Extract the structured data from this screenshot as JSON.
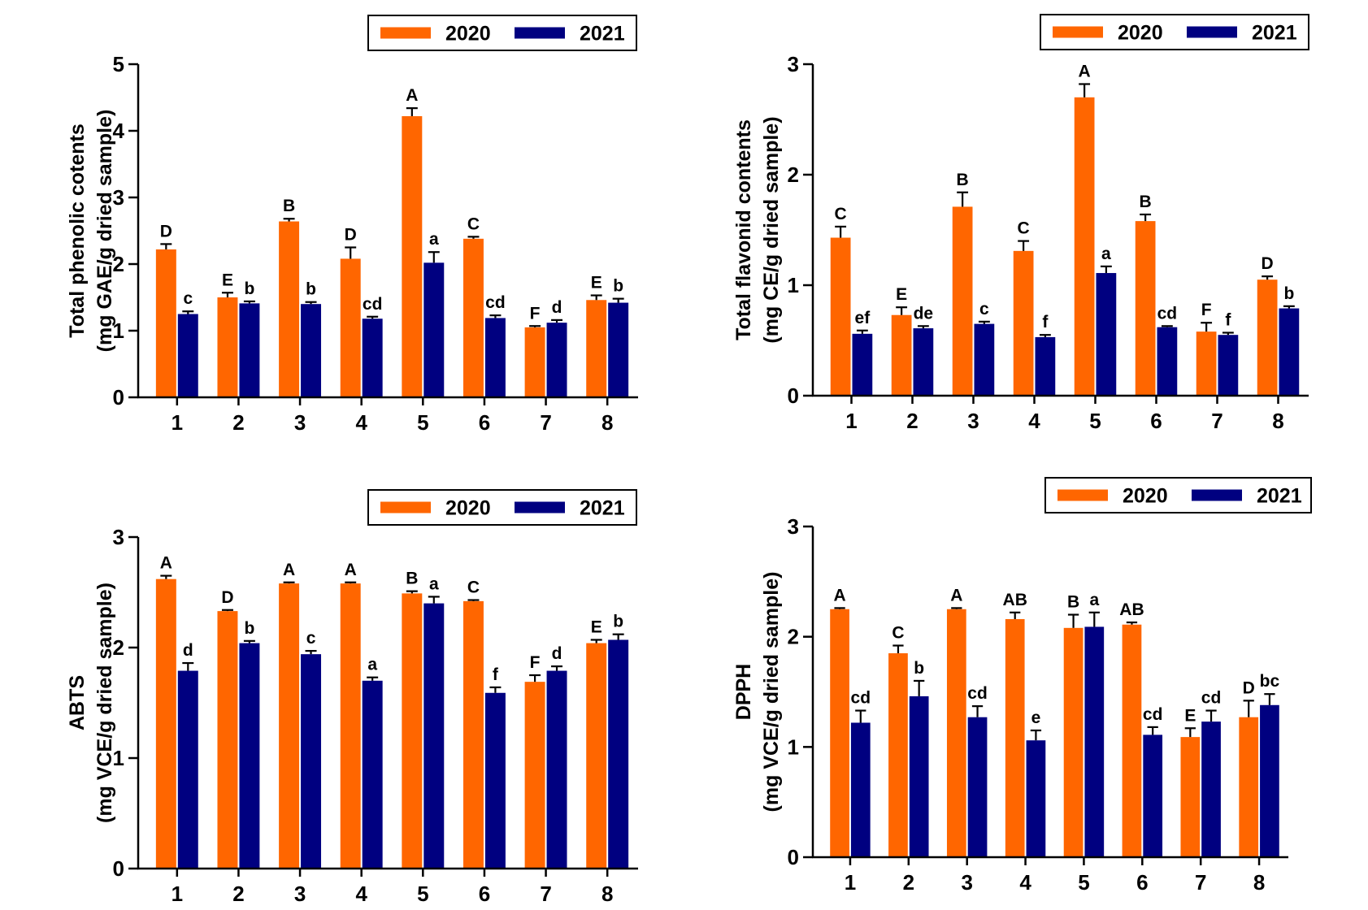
{
  "colors": {
    "series_2020": "#FF6600",
    "series_2021": "#000080",
    "axis": "#000000"
  },
  "chart_data": [
    {
      "type": "bar",
      "categories": [
        "1",
        "2",
        "3",
        "4",
        "5",
        "6",
        "7",
        "8"
      ],
      "ylabel_lines": [
        "Total phenolic cotents",
        "(mg GAE/g dried sample)"
      ],
      "ylim": [
        0,
        5
      ],
      "yticks": [
        0,
        1,
        2,
        3,
        4,
        5
      ],
      "legend": "top-right",
      "grid": false,
      "series": [
        {
          "name": "2020",
          "values": [
            2.22,
            1.5,
            2.64,
            2.08,
            4.22,
            2.38,
            1.05,
            1.46
          ],
          "errors": [
            0.08,
            0.07,
            0.04,
            0.17,
            0.12,
            0.03,
            0.02,
            0.07
          ],
          "labels": [
            "D",
            "E",
            "B",
            "D",
            "A",
            "C",
            "F",
            "E"
          ]
        },
        {
          "name": "2021",
          "values": [
            1.25,
            1.41,
            1.4,
            1.18,
            2.02,
            1.19,
            1.12,
            1.42
          ],
          "errors": [
            0.04,
            0.03,
            0.03,
            0.03,
            0.16,
            0.04,
            0.04,
            0.06
          ],
          "labels": [
            "c",
            "b",
            "b",
            "cd",
            "a",
            "cd",
            "d",
            "b"
          ]
        }
      ]
    },
    {
      "type": "bar",
      "categories": [
        "1",
        "2",
        "3",
        "4",
        "5",
        "6",
        "7",
        "8"
      ],
      "ylabel_lines": [
        "Total flavonid contents",
        "(mg CE/g dried sample)"
      ],
      "ylim": [
        0,
        3
      ],
      "yticks": [
        0,
        1,
        2,
        3
      ],
      "legend": "top-right",
      "grid": false,
      "series": [
        {
          "name": "2020",
          "values": [
            1.43,
            0.73,
            1.71,
            1.31,
            2.7,
            1.58,
            0.58,
            1.05
          ],
          "errors": [
            0.1,
            0.07,
            0.13,
            0.09,
            0.12,
            0.06,
            0.08,
            0.03
          ],
          "labels": [
            "C",
            "E",
            "B",
            "C",
            "A",
            "B",
            "F",
            "D"
          ]
        },
        {
          "name": "2021",
          "values": [
            0.56,
            0.61,
            0.65,
            0.53,
            1.11,
            0.62,
            0.55,
            0.79
          ],
          "errors": [
            0.03,
            0.02,
            0.02,
            0.02,
            0.06,
            0.01,
            0.02,
            0.02
          ],
          "labels": [
            "ef",
            "de",
            "c",
            "f",
            "a",
            "cd",
            "f",
            "b"
          ]
        }
      ]
    },
    {
      "type": "bar",
      "categories": [
        "1",
        "2",
        "3",
        "4",
        "5",
        "6",
        "7",
        "8"
      ],
      "ylabel_lines": [
        "ABTS",
        "(mg VCE/g dried sample)"
      ],
      "ylim": [
        0,
        3
      ],
      "yticks": [
        0,
        1,
        2,
        3
      ],
      "legend": "top-right",
      "grid": false,
      "series": [
        {
          "name": "2020",
          "values": [
            2.62,
            2.33,
            2.58,
            2.58,
            2.49,
            2.42,
            1.69,
            2.04
          ],
          "errors": [
            0.03,
            0.01,
            0.01,
            0.01,
            0.02,
            0.01,
            0.06,
            0.03
          ],
          "labels": [
            "A",
            "D",
            "A",
            "A",
            "B",
            "C",
            "F",
            "E"
          ]
        },
        {
          "name": "2021",
          "values": [
            1.79,
            2.04,
            1.94,
            1.7,
            2.4,
            1.59,
            1.79,
            2.07
          ],
          "errors": [
            0.07,
            0.02,
            0.03,
            0.03,
            0.06,
            0.05,
            0.04,
            0.05
          ],
          "labels": [
            "d",
            "b",
            "c",
            "a",
            "a",
            "f",
            "d",
            "b"
          ]
        }
      ]
    },
    {
      "type": "bar",
      "categories": [
        "1",
        "2",
        "3",
        "4",
        "5",
        "6",
        "7",
        "8"
      ],
      "ylabel_lines": [
        "DPPH",
        "(mg VCE/g dried sample)"
      ],
      "ylim": [
        0,
        3
      ],
      "yticks": [
        0,
        1,
        2,
        3
      ],
      "legend": "top-right",
      "grid": false,
      "series": [
        {
          "name": "2020",
          "values": [
            2.25,
            1.85,
            2.25,
            2.16,
            2.08,
            2.11,
            1.09,
            1.27
          ],
          "errors": [
            0.01,
            0.07,
            0.01,
            0.06,
            0.12,
            0.02,
            0.08,
            0.15
          ],
          "labels": [
            "A",
            "C",
            "A",
            "AB",
            "B",
            "AB",
            "E",
            "D"
          ]
        },
        {
          "name": "2021",
          "values": [
            1.22,
            1.46,
            1.27,
            1.06,
            2.09,
            1.11,
            1.23,
            1.38
          ],
          "errors": [
            0.11,
            0.14,
            0.1,
            0.09,
            0.13,
            0.07,
            0.1,
            0.1
          ],
          "labels": [
            "cd",
            "b",
            "cd",
            "e",
            "a",
            "cd",
            "cd",
            "bc"
          ]
        }
      ]
    }
  ]
}
